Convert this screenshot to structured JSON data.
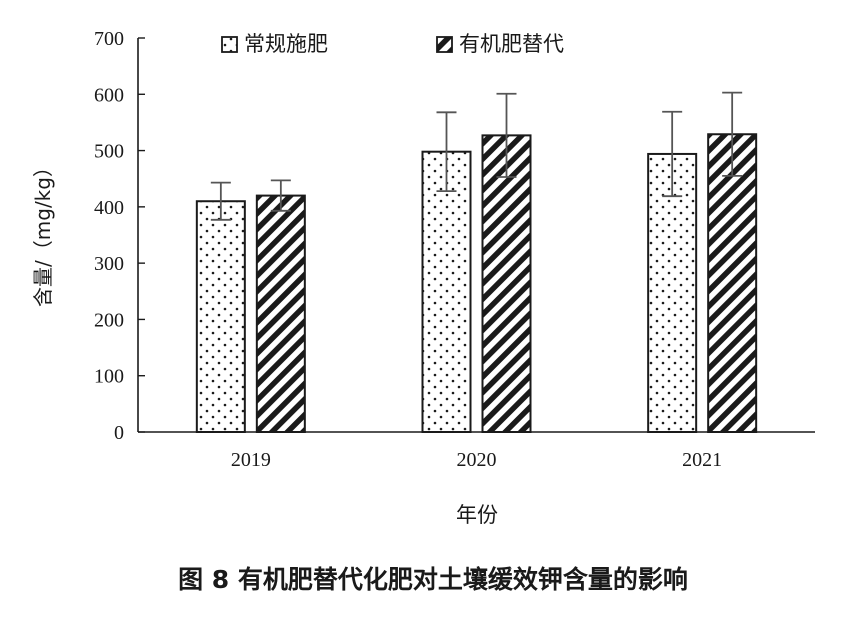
{
  "chart_data": {
    "type": "bar",
    "categories": [
      "2019",
      "2020",
      "2021"
    ],
    "series": [
      {
        "name": "常规施肥",
        "values": [
          410,
          498,
          494
        ],
        "errors": [
          33,
          70,
          75
        ],
        "pattern": "dots"
      },
      {
        "name": "有机肥替代",
        "values": [
          420,
          527,
          529
        ],
        "errors": [
          27,
          74,
          74
        ],
        "pattern": "stripes"
      }
    ],
    "xlabel": "年份",
    "ylabel": "含量/（mg/kg）",
    "ylim": [
      0,
      700
    ],
    "yticks": [
      0,
      100,
      200,
      300,
      400,
      500,
      600,
      700
    ],
    "legend_position": "top",
    "grid": false,
    "bar_fill": "#ffffff",
    "ink_color": "#1a1a1a",
    "errorbar_color": "#555555"
  },
  "caption": "图 8  有机肥替代化肥对土壤缓效钾含量的影响"
}
